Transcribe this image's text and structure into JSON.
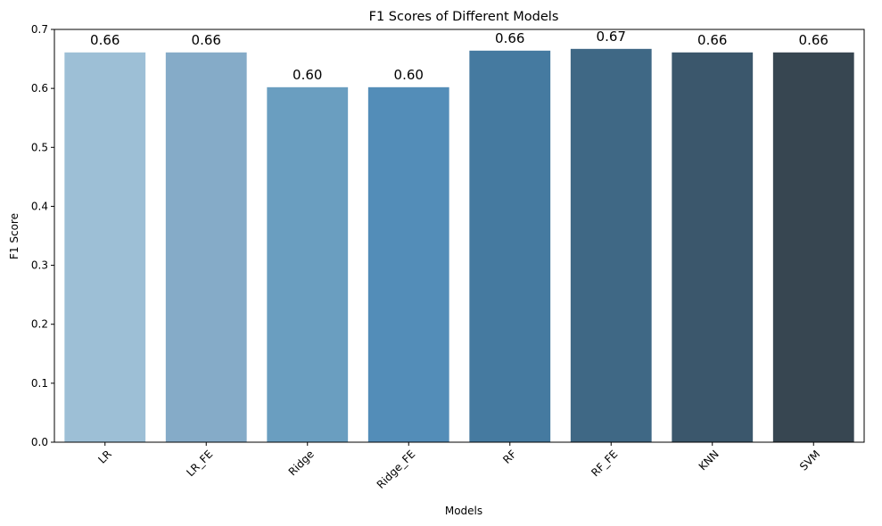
{
  "chart_data": {
    "type": "bar",
    "title": "F1 Scores of Different Models",
    "xlabel": "Models",
    "ylabel": "F1 Score",
    "ylim": [
      0,
      0.7
    ],
    "yticks": [
      0.0,
      0.1,
      0.2,
      0.3,
      0.4,
      0.5,
      0.6,
      0.7
    ],
    "ytick_labels": [
      "0.0",
      "0.1",
      "0.2",
      "0.3",
      "0.4",
      "0.5",
      "0.6",
      "0.7"
    ],
    "categories": [
      "LR",
      "LR_FE",
      "Ridge",
      "Ridge_FE",
      "RF",
      "RF_FE",
      "KNN",
      "SVM"
    ],
    "values": [
      0.661,
      0.661,
      0.602,
      0.602,
      0.664,
      0.667,
      0.661,
      0.661
    ],
    "data_labels": [
      "0.66",
      "0.66",
      "0.60",
      "0.60",
      "0.66",
      "0.67",
      "0.66",
      "0.66"
    ],
    "colors": [
      "#9dbfd6",
      "#85abc8",
      "#6a9ec0",
      "#538db8",
      "#457aa0",
      "#3f6885",
      "#3b576c",
      "#374651"
    ],
    "grid": false,
    "legend": "none"
  }
}
